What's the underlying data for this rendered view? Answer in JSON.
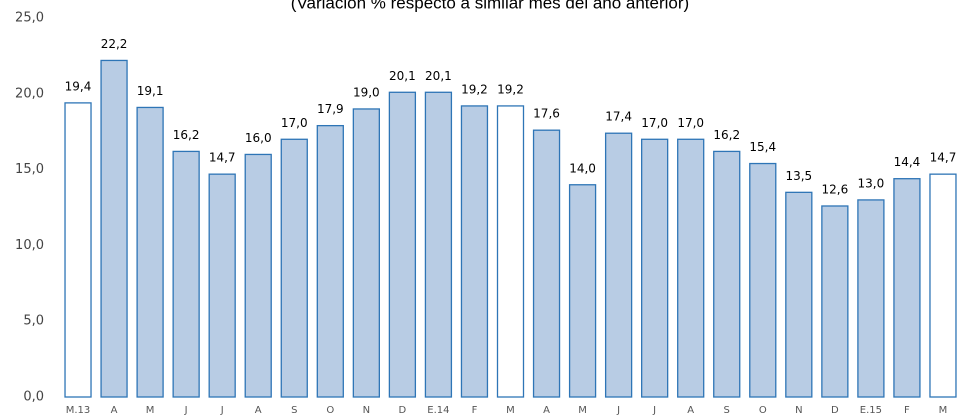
{
  "chart_data": {
    "type": "bar",
    "subtitle": "(Variación % respecto a similar mes del año anterior)",
    "categories": [
      "M.13",
      "A",
      "M",
      "J",
      "J",
      "A",
      "S",
      "O",
      "N",
      "D",
      "E.14",
      "F",
      "M",
      "A",
      "M",
      "J",
      "J",
      "A",
      "S",
      "O",
      "N",
      "D",
      "E.15",
      "F",
      "M"
    ],
    "values": [
      19.4,
      22.2,
      19.1,
      16.2,
      14.7,
      16.0,
      17.0,
      17.9,
      19.0,
      20.1,
      20.1,
      19.2,
      19.2,
      17.6,
      14.0,
      17.4,
      17.0,
      17.0,
      16.2,
      15.4,
      13.5,
      12.6,
      13.0,
      14.4,
      14.7
    ],
    "value_labels": [
      "19,4",
      "22,2",
      "19,1",
      "16,2",
      "14,7",
      "16,0",
      "17,0",
      "17,9",
      "19,0",
      "20,1",
      "20,1",
      "19,2",
      "19,2",
      "17,6",
      "14,0",
      "17,4",
      "17,0",
      "17,0",
      "16,2",
      "15,4",
      "13,5",
      "12,6",
      "13,0",
      "14,4",
      "14,7"
    ],
    "colors": [
      "#ffffff",
      "#b8cce4",
      "#b8cce4",
      "#b8cce4",
      "#b8cce4",
      "#b8cce4",
      "#b8cce4",
      "#b8cce4",
      "#b8cce4",
      "#b8cce4",
      "#b8cce4",
      "#b8cce4",
      "#ffffff",
      "#b8cce4",
      "#b8cce4",
      "#b8cce4",
      "#b8cce4",
      "#b8cce4",
      "#b8cce4",
      "#b8cce4",
      "#b8cce4",
      "#b8cce4",
      "#b8cce4",
      "#b8cce4",
      "#ffffff"
    ],
    "edge_color": "#2e75b6",
    "ylim": [
      0,
      25
    ],
    "yticks": [
      {
        "value": 0,
        "label": "0,0"
      },
      {
        "value": 5,
        "label": "5,0"
      },
      {
        "value": 10,
        "label": "10,0"
      },
      {
        "value": 15,
        "label": "15,0"
      },
      {
        "value": 20,
        "label": "20,0"
      },
      {
        "value": 25,
        "label": "25,0"
      }
    ]
  }
}
